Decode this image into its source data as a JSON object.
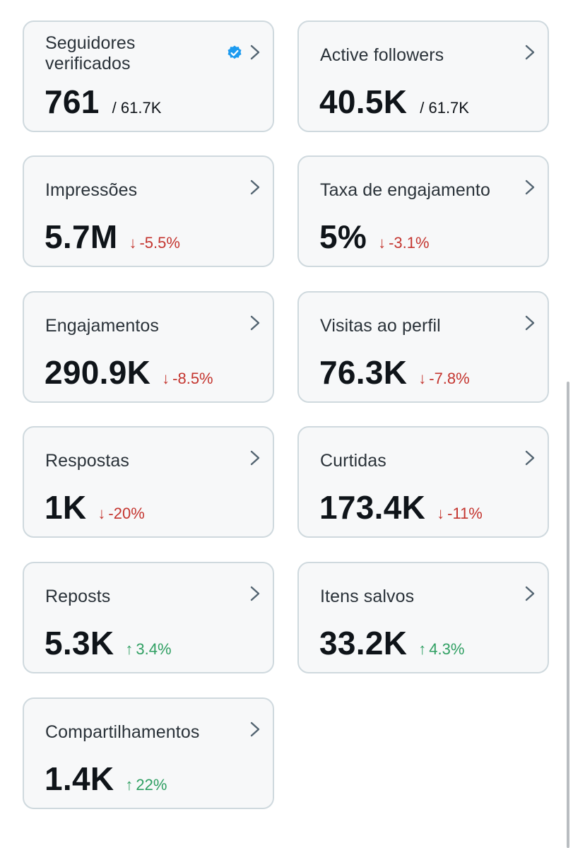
{
  "colors": {
    "card_bg": "#f7f8f9",
    "card_border": "#cfd9de",
    "decrease": "#c4352f",
    "increase": "#2f9f62",
    "verified": "#1d9bf0"
  },
  "cards": [
    {
      "label": "Seguidores verificados",
      "value": "761",
      "total": "/ 61.7K",
      "icon": "verified-badge-icon"
    },
    {
      "label": "Active followers",
      "value": "40.5K",
      "total": "/ 61.7K"
    },
    {
      "label": "Impressões",
      "value": "5.7M",
      "change": "-5.5%",
      "arrow": "↓",
      "trend": "down"
    },
    {
      "label": "Taxa de engajamento",
      "value": "5%",
      "change": "-3.1%",
      "arrow": "↓",
      "trend": "down"
    },
    {
      "label": "Engajamentos",
      "value": "290.9K",
      "change": "-8.5%",
      "arrow": "↓",
      "trend": "down"
    },
    {
      "label": "Visitas ao perfil",
      "value": "76.3K",
      "change": "-7.8%",
      "arrow": "↓",
      "trend": "down"
    },
    {
      "label": "Respostas",
      "value": "1K",
      "change": "-20%",
      "arrow": "↓",
      "trend": "down"
    },
    {
      "label": "Curtidas",
      "value": "173.4K",
      "change": "-11%",
      "arrow": "↓",
      "trend": "down"
    },
    {
      "label": "Reposts",
      "value": "5.3K",
      "change": "3.4%",
      "arrow": "↑",
      "trend": "up"
    },
    {
      "label": "Itens salvos",
      "value": "33.2K",
      "change": "4.3%",
      "arrow": "↑",
      "trend": "up"
    },
    {
      "label": "Compartilhamentos",
      "value": "1.4K",
      "change": "22%",
      "arrow": "↑",
      "trend": "up"
    }
  ]
}
